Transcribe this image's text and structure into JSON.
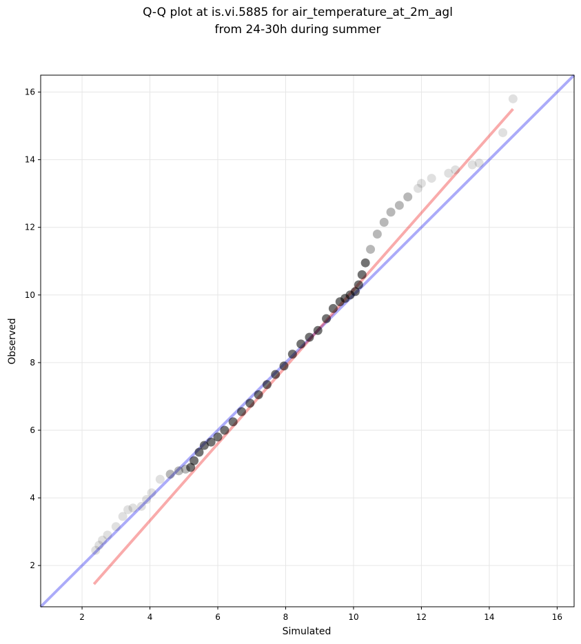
{
  "chart_data": {
    "type": "scatter",
    "title": "Q-Q plot at is.vi.5885 for air_temperature_at_2m_agl",
    "subtitle": "from 24-30h during summer",
    "xlabel": "Simulated",
    "ylabel": "Observed",
    "xlim": [
      0.78,
      16.5
    ],
    "ylim": [
      0.78,
      16.5
    ],
    "xticks": [
      2,
      4,
      6,
      8,
      10,
      12,
      14,
      16
    ],
    "yticks": [
      2,
      4,
      6,
      8,
      10,
      12,
      14,
      16
    ],
    "grid": true,
    "legend": "none",
    "colors": {
      "points": "#000000",
      "identity_line": "#0000ee",
      "fit_line": "#ee0000",
      "grid": "#e6e6e6"
    },
    "identity_line": {
      "x": [
        0.78,
        16.5
      ],
      "y": [
        0.78,
        16.5
      ]
    },
    "fit_line": {
      "x": [
        2.35,
        14.7
      ],
      "y": [
        1.45,
        15.5
      ]
    },
    "quantiles": {
      "x": [
        2.4,
        2.5,
        2.6,
        2.75,
        3.0,
        3.2,
        3.35,
        3.5,
        3.75,
        3.9,
        4.05,
        4.3,
        4.6,
        4.85,
        5.05,
        5.2,
        5.3,
        5.45,
        5.6,
        5.8,
        6.0,
        6.2,
        6.45,
        6.7,
        6.95,
        7.2,
        7.45,
        7.7,
        7.95,
        8.2,
        8.45,
        8.7,
        8.95,
        9.2,
        9.4,
        9.6,
        9.75,
        9.9,
        10.05,
        10.15,
        10.25,
        10.35,
        10.5,
        10.7,
        10.9,
        11.1,
        11.35,
        11.6,
        11.9,
        12.0,
        12.3,
        12.8,
        13.0,
        13.5,
        13.7,
        14.4,
        14.7
      ],
      "y": [
        2.45,
        2.6,
        2.75,
        2.9,
        3.15,
        3.45,
        3.65,
        3.7,
        3.75,
        3.95,
        4.15,
        4.55,
        4.7,
        4.8,
        4.85,
        4.9,
        5.1,
        5.35,
        5.55,
        5.65,
        5.8,
        6.0,
        6.25,
        6.55,
        6.8,
        7.05,
        7.35,
        7.65,
        7.9,
        8.25,
        8.55,
        8.75,
        8.95,
        9.3,
        9.6,
        9.8,
        9.9,
        10.0,
        10.1,
        10.3,
        10.6,
        10.95,
        11.35,
        11.8,
        12.15,
        12.45,
        12.65,
        12.9,
        13.15,
        13.3,
        13.45,
        13.6,
        13.7,
        13.85,
        13.9,
        14.8,
        15.8
      ]
    }
  }
}
